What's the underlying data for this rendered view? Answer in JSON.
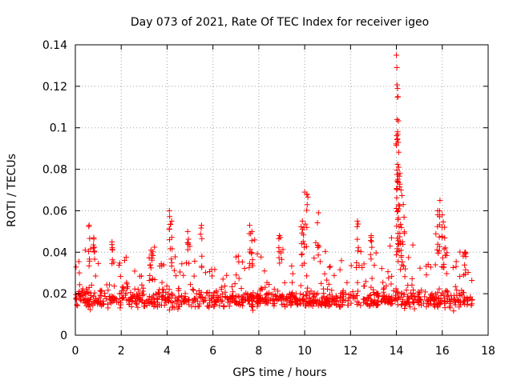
{
  "chart_data": {
    "type": "scatter",
    "title": "Day 073 of 2021, Rate Of TEC Index for receiver igeo",
    "xlabel": "GPS time / hours",
    "ylabel": "ROTI / TECUs",
    "xlim": [
      0,
      18
    ],
    "ylim": [
      0,
      0.14
    ],
    "xticks": [
      0,
      2,
      4,
      6,
      8,
      10,
      12,
      14,
      16,
      18
    ],
    "yticks": [
      0,
      0.02,
      0.04,
      0.06,
      0.08,
      0.1,
      0.12,
      0.14
    ],
    "xtick_labels": [
      "0",
      "2",
      "4",
      "6",
      "8",
      "10",
      "12",
      "14",
      "16",
      "18"
    ],
    "ytick_labels": [
      "0",
      "0.02",
      "0.04",
      "0.06",
      "0.08",
      "0.1",
      "0.12",
      "0.14"
    ],
    "grid": true,
    "marker": "+",
    "color": "#ff0000",
    "data_extent_hours": [
      0,
      17.3
    ],
    "series": [
      {
        "name": "ROTI",
        "note": "dense background band ~0.005-0.03 TECU/s over 0-17.3 h (generated in script); notable peaks listed below",
        "peaks": [
          {
            "x": 0.6,
            "y": 0.053
          },
          {
            "x": 0.8,
            "y": 0.047
          },
          {
            "x": 1.6,
            "y": 0.045
          },
          {
            "x": 3.3,
            "y": 0.041
          },
          {
            "x": 4.1,
            "y": 0.06
          },
          {
            "x": 4.2,
            "y": 0.055
          },
          {
            "x": 4.9,
            "y": 0.05
          },
          {
            "x": 5.5,
            "y": 0.053
          },
          {
            "x": 7.6,
            "y": 0.053
          },
          {
            "x": 7.7,
            "y": 0.05
          },
          {
            "x": 8.9,
            "y": 0.048
          },
          {
            "x": 9.9,
            "y": 0.055
          },
          {
            "x": 10.0,
            "y": 0.069
          },
          {
            "x": 10.1,
            "y": 0.068
          },
          {
            "x": 10.6,
            "y": 0.059
          },
          {
            "x": 12.3,
            "y": 0.055
          },
          {
            "x": 12.9,
            "y": 0.048
          },
          {
            "x": 14.0,
            "y": 0.135
          },
          {
            "x": 14.02,
            "y": 0.129
          },
          {
            "x": 14.05,
            "y": 0.119
          },
          {
            "x": 14.07,
            "y": 0.115
          },
          {
            "x": 14.03,
            "y": 0.104
          },
          {
            "x": 14.08,
            "y": 0.093
          },
          {
            "x": 14.1,
            "y": 0.081
          },
          {
            "x": 14.15,
            "y": 0.078
          },
          {
            "x": 14.2,
            "y": 0.07
          },
          {
            "x": 14.3,
            "y": 0.063
          },
          {
            "x": 15.8,
            "y": 0.06
          },
          {
            "x": 15.9,
            "y": 0.065
          },
          {
            "x": 16.0,
            "y": 0.058
          },
          {
            "x": 16.1,
            "y": 0.052
          },
          {
            "x": 17.0,
            "y": 0.04
          }
        ]
      }
    ]
  }
}
